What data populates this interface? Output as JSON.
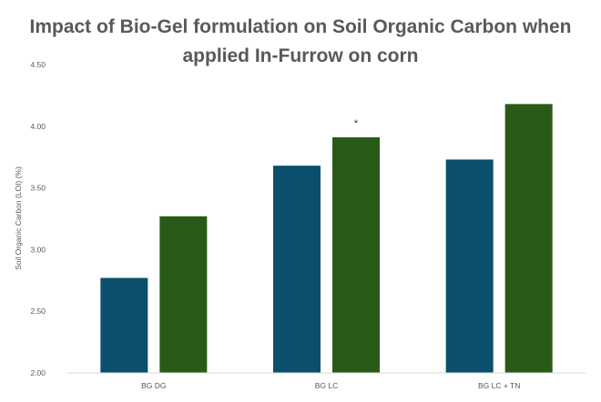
{
  "chart_data": {
    "type": "bar",
    "title_lines": [
      "Impact of Bio-Gel formulation on Soil Organic Carbon when",
      "applied In-Furrow on corn"
    ],
    "xlabel": "",
    "ylabel": "Soil Organic Carbon (LOI) (%)",
    "categories": [
      "BG DG",
      "BG LC",
      "BG LC + TN"
    ],
    "series": [
      {
        "values": [
          2.77,
          3.68,
          3.73
        ]
      },
      {
        "values": [
          3.27,
          3.91,
          4.18
        ]
      }
    ],
    "ylim": [
      2.0,
      4.5
    ],
    "yticks": [
      "2.00",
      "2.50",
      "3.00",
      "3.50",
      "4.00",
      "4.50"
    ],
    "annotations": [
      {
        "category": "BG LC",
        "series": 1,
        "text": "*"
      }
    ],
    "grid": false,
    "legend": "none",
    "colors": {
      "series": [
        "#0b4f6c",
        "#2a5a18"
      ],
      "axis_text": "#595959",
      "title": "#595959",
      "axis_line": "#d9d9d9"
    }
  }
}
